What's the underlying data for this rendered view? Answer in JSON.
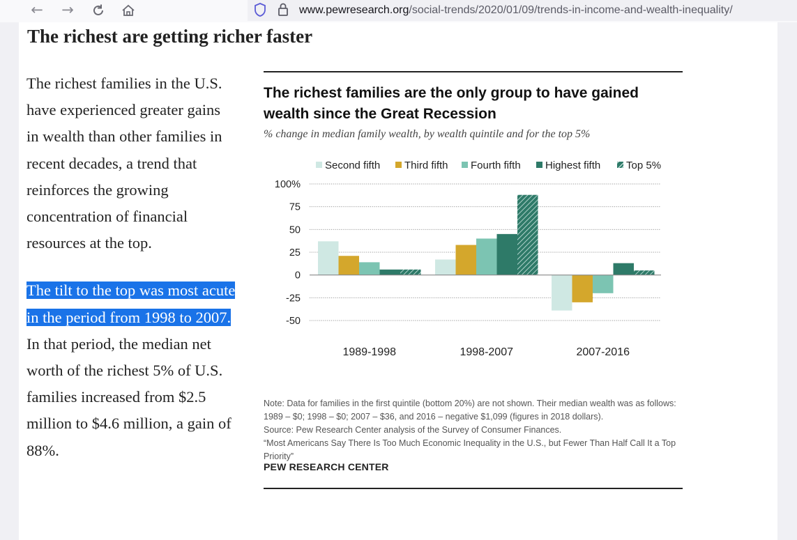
{
  "browser": {
    "url_host": "www.pewresearch.org",
    "url_path": "/social-trends/2020/01/09/trends-in-income-and-wealth-inequality/"
  },
  "article": {
    "headline": "The richest are getting richer faster",
    "para1": "The richest families in the U.S. have experienced greater gains in wealth than other families in recent decades, a trend that reinforces the growing concentration of financial resources at the top.",
    "para2_highlight": "The tilt to the top was most acute in the period from 1998 to 2007.",
    "para2_rest": " In that period, the median net worth of the richest 5% of U.S. families increased from $2.5 million to $4.6 million, a gain of 88%."
  },
  "figure": {
    "title": "The richest families are the only group to have gained wealth since the Great Recession",
    "subtitle": "% change in median family wealth, by wealth quintile and for the top 5%",
    "note1": "Note: Data for families in the first quintile (bottom 20%) are not shown. Their median wealth was as follows: 1989 – $0; 1998 – $0; 2007 – $36, and 2016 – negative $1,099 (figures in 2018 dollars).",
    "note2": "Source: Pew Research Center analysis of the Survey of Consumer Finances.",
    "note3": "“Most Americans Say There Is Too Much Economic Inequality in the U.S., but Fewer Than Half Call It a Top Priority”",
    "org": "PEW RESEARCH CENTER"
  },
  "chart_data": {
    "type": "bar",
    "categories": [
      "1989-1998",
      "1998-2007",
      "2007-2016"
    ],
    "series": [
      {
        "name": "Second fifth",
        "color": "#cfe8e3",
        "values": [
          37,
          17,
          -39
        ]
      },
      {
        "name": "Third fifth",
        "color": "#d4a72c",
        "values": [
          21,
          33,
          -30
        ]
      },
      {
        "name": "Fourth fifth",
        "color": "#7cc4b2",
        "values": [
          14,
          40,
          -20
        ]
      },
      {
        "name": "Highest fifth",
        "color": "#2e7a68",
        "values": [
          6,
          45,
          13
        ]
      },
      {
        "name": "Top 5%",
        "color": "#2e7a68",
        "pattern": "hatched",
        "values": [
          6,
          88,
          5
        ]
      }
    ],
    "y_ticks": [
      "100%",
      "75",
      "50",
      "25",
      "0",
      "-25",
      "-50"
    ],
    "ylim": [
      -50,
      100
    ],
    "grid": true,
    "legend_position": "top"
  }
}
